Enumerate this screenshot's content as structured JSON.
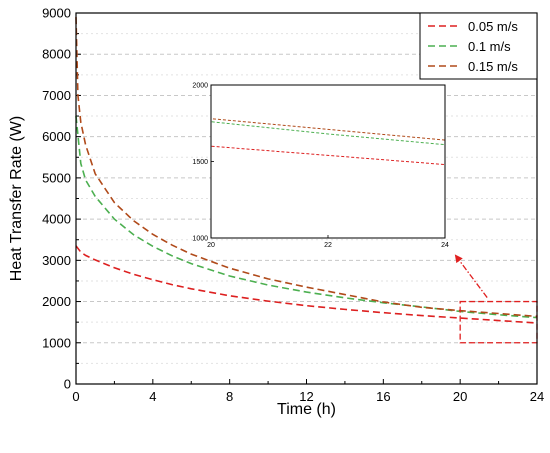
{
  "chart_data": {
    "type": "line",
    "xlabel": "Time (h)",
    "ylabel": "Heat Transfer Rate (W)",
    "xlim": [
      0,
      24
    ],
    "ylim": [
      0,
      9000
    ],
    "xticks": [
      "0",
      "4",
      "8",
      "12",
      "16",
      "20",
      "24"
    ],
    "yticks": [
      "0",
      "1000",
      "2000",
      "3000",
      "4000",
      "5000",
      "6000",
      "7000",
      "8000",
      "9000"
    ],
    "grid": "horizontal dashed",
    "legend_position": "top-right",
    "series": [
      {
        "name": "0.05 m/s",
        "color": "#dd2020",
        "x": [
          0,
          0.25,
          0.5,
          1,
          2,
          3,
          4,
          5,
          6,
          8,
          10,
          12,
          14,
          16,
          18,
          20,
          22,
          24
        ],
        "y": [
          3350,
          3200,
          3120,
          3010,
          2820,
          2660,
          2530,
          2410,
          2310,
          2140,
          2010,
          1900,
          1810,
          1730,
          1660,
          1600,
          1540,
          1480
        ]
      },
      {
        "name": "0.1 m/s",
        "color": "#4caf50",
        "x": [
          0,
          0.25,
          0.5,
          1,
          2,
          3,
          4,
          5,
          6,
          8,
          10,
          12,
          14,
          16,
          18,
          20,
          22,
          24
        ],
        "y": [
          6500,
          5350,
          4950,
          4550,
          4000,
          3620,
          3340,
          3110,
          2920,
          2620,
          2400,
          2230,
          2090,
          1970,
          1870,
          1760,
          1680,
          1610
        ]
      },
      {
        "name": "0.15 m/s",
        "color": "#b04a1a",
        "x": [
          0,
          0.1,
          0.25,
          0.5,
          1,
          2,
          3,
          4,
          5,
          6,
          8,
          10,
          12,
          14,
          16,
          18,
          20,
          22,
          24
        ],
        "y": [
          8900,
          7000,
          6350,
          5800,
          5100,
          4400,
          3960,
          3630,
          3370,
          3150,
          2810,
          2550,
          2350,
          2170,
          1990,
          1860,
          1780,
          1710,
          1640
        ]
      }
    ],
    "highlight_box": {
      "x": [
        20,
        24
      ],
      "y": [
        1000,
        2000
      ]
    },
    "inset": {
      "xlim": [
        20,
        24
      ],
      "ylim": [
        1000,
        2000
      ],
      "xticks": [
        "20",
        "22",
        "24"
      ],
      "yticks": [
        "1000",
        "1500",
        "2000"
      ]
    }
  }
}
